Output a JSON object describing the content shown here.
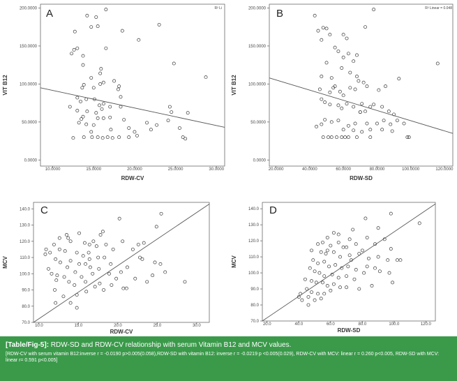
{
  "chart_data": [
    {
      "panel_letter": "A",
      "type": "scatter",
      "xlabel": "RDW-CV",
      "ylabel": "VIT B12",
      "xlim": [
        8.5,
        31
      ],
      "ylim": [
        -8,
        205
      ],
      "xticks": [
        10,
        15,
        20,
        25,
        30
      ],
      "yticks": [
        0,
        50,
        100,
        150,
        200
      ],
      "xtick_labels": [
        "10.0000",
        "15.0000",
        "20.0000",
        "25.0000",
        "30.0000"
      ],
      "ytick_labels": [
        "0.0000",
        "50.0000",
        "100.0000",
        "150.0000",
        "200.0000"
      ],
      "corner_note": "R² Li",
      "fit_line": {
        "x": [
          8.5,
          31
        ],
        "y": [
          95,
          43
        ]
      },
      "points": [
        [
          16.5,
          198
        ],
        [
          14.2,
          190
        ],
        [
          15.3,
          188
        ],
        [
          12.7,
          169
        ],
        [
          13.0,
          147
        ],
        [
          12.6,
          145
        ],
        [
          12.3,
          140
        ],
        [
          14.7,
          175
        ],
        [
          15.5,
          176
        ],
        [
          18.5,
          170
        ],
        [
          23.0,
          178
        ],
        [
          20.5,
          158
        ],
        [
          16.5,
          147
        ],
        [
          13.7,
          137
        ],
        [
          13.7,
          125
        ],
        [
          15.9,
          120
        ],
        [
          15.8,
          114
        ],
        [
          14.7,
          108
        ],
        [
          17.5,
          104
        ],
        [
          15.8,
          100
        ],
        [
          16.2,
          102
        ],
        [
          13.8,
          99
        ],
        [
          15.0,
          95
        ],
        [
          18.0,
          93
        ],
        [
          18.1,
          97
        ],
        [
          13.6,
          95
        ],
        [
          13.0,
          82
        ],
        [
          13.4,
          77
        ],
        [
          12.1,
          70
        ],
        [
          14.1,
          80
        ],
        [
          15.1,
          80
        ],
        [
          15.7,
          72
        ],
        [
          16.2,
          74
        ],
        [
          17.0,
          70
        ],
        [
          18.3,
          70
        ],
        [
          13.0,
          65
        ],
        [
          14.2,
          64
        ],
        [
          13.5,
          54
        ],
        [
          15.5,
          55
        ],
        [
          16.2,
          55
        ],
        [
          17.0,
          56
        ],
        [
          18.7,
          53
        ],
        [
          21.5,
          49
        ],
        [
          22.7,
          46
        ],
        [
          13.2,
          49
        ],
        [
          14.1,
          47
        ],
        [
          15.0,
          46
        ],
        [
          14.7,
          37
        ],
        [
          17.1,
          40
        ],
        [
          19.3,
          42
        ],
        [
          20.0,
          37
        ],
        [
          22.0,
          40
        ],
        [
          12.5,
          29
        ],
        [
          13.8,
          30
        ],
        [
          14.8,
          30
        ],
        [
          15.5,
          30
        ],
        [
          16.1,
          29
        ],
        [
          16.7,
          30
        ],
        [
          17.3,
          29
        ],
        [
          18.1,
          30
        ],
        [
          19.3,
          30
        ],
        [
          20.3,
          32
        ],
        [
          24.1,
          52
        ],
        [
          24.8,
          127
        ],
        [
          24.3,
          70
        ],
        [
          24.5,
          63
        ],
        [
          25.5,
          42
        ],
        [
          26.5,
          62
        ],
        [
          25.9,
          30
        ],
        [
          26.2,
          28
        ],
        [
          28.7,
          109
        ],
        [
          13.7,
          57
        ],
        [
          15.3,
          62
        ],
        [
          16.0,
          67
        ],
        [
          18.3,
          83
        ]
      ]
    },
    {
      "panel_letter": "B",
      "type": "scatter",
      "xlabel": "RDW-SD",
      "ylabel": "VIT B12",
      "xlim": [
        16,
        125
      ],
      "ylim": [
        -8,
        205
      ],
      "xticks": [
        20,
        40,
        60,
        80,
        100,
        120
      ],
      "yticks": [
        0,
        50,
        100,
        150,
        200
      ],
      "xtick_labels": [
        "20.0000",
        "40.0000",
        "60.0000",
        "80.0000",
        "100.0000",
        "120.0000"
      ],
      "ytick_labels": [
        "0.0000",
        "50.0000",
        "100.0000",
        "150.0000",
        "200.0000"
      ],
      "corner_note": "R² Linear = 0.048",
      "fit_line": {
        "x": [
          16,
          125
        ],
        "y": [
          108,
          35
        ]
      },
      "points": [
        [
          78,
          198
        ],
        [
          43,
          190
        ],
        [
          73,
          175
        ],
        [
          48,
          174
        ],
        [
          50,
          173
        ],
        [
          52,
          165
        ],
        [
          60,
          165
        ],
        [
          47,
          158
        ],
        [
          62,
          160
        ],
        [
          55,
          148
        ],
        [
          57,
          143
        ],
        [
          63,
          140
        ],
        [
          68,
          138
        ],
        [
          60,
          135
        ],
        [
          66,
          130
        ],
        [
          50,
          128
        ],
        [
          59,
          121
        ],
        [
          64,
          115
        ],
        [
          53,
          108
        ],
        [
          47,
          110
        ],
        [
          68,
          110
        ],
        [
          85,
          97
        ],
        [
          81,
          92
        ],
        [
          93,
          107
        ],
        [
          69,
          104
        ],
        [
          72,
          102
        ],
        [
          74,
          97
        ],
        [
          67,
          93
        ],
        [
          58,
          90
        ],
        [
          60,
          85
        ],
        [
          46,
          93
        ],
        [
          52,
          89
        ],
        [
          55,
          97
        ],
        [
          47,
          80
        ],
        [
          49,
          76
        ],
        [
          52,
          73
        ],
        [
          57,
          72
        ],
        [
          59,
          68
        ],
        [
          62,
          74
        ],
        [
          66,
          70
        ],
        [
          71,
          74
        ],
        [
          76,
          70
        ],
        [
          70,
          63
        ],
        [
          73,
          64
        ],
        [
          78,
          73
        ],
        [
          83,
          70
        ],
        [
          87,
          64
        ],
        [
          90,
          60
        ],
        [
          84,
          52
        ],
        [
          92,
          52
        ],
        [
          96,
          48
        ],
        [
          88,
          47
        ],
        [
          80,
          48
        ],
        [
          74,
          48
        ],
        [
          67,
          48
        ],
        [
          63,
          45
        ],
        [
          57,
          52
        ],
        [
          53,
          50
        ],
        [
          49,
          53
        ],
        [
          47,
          47
        ],
        [
          44,
          44
        ],
        [
          60,
          40
        ],
        [
          66,
          39
        ],
        [
          71,
          37
        ],
        [
          76,
          40
        ],
        [
          83,
          40
        ],
        [
          89,
          38
        ],
        [
          48,
          30
        ],
        [
          51,
          30
        ],
        [
          53,
          30
        ],
        [
          56,
          30
        ],
        [
          59,
          30
        ],
        [
          61,
          30
        ],
        [
          63,
          30
        ],
        [
          68,
          30
        ],
        [
          76,
          30
        ],
        [
          98,
          30
        ],
        [
          99,
          30
        ],
        [
          116,
          127
        ],
        [
          45,
          170
        ],
        [
          64,
          95
        ],
        [
          54,
          95
        ],
        [
          70,
          63
        ]
      ]
    },
    {
      "panel_letter": "C",
      "type": "scatter",
      "xlabel": "RDW-CV",
      "ylabel": "MCV",
      "xlim": [
        9.3,
        31.6
      ],
      "ylim": [
        70,
        144
      ],
      "xticks": [
        10,
        15,
        20,
        25,
        30
      ],
      "yticks": [
        70,
        80,
        90,
        100,
        110,
        120,
        130,
        140
      ],
      "xtick_labels": [
        "10.0",
        "15.0",
        "20.0",
        "25.0",
        "30.0"
      ],
      "ytick_labels": [
        "70.0",
        "80.0",
        "90.0",
        "100.0",
        "110.0",
        "120.0",
        "130.0",
        "140.0"
      ],
      "corner_note": "",
      "fit_line": {
        "x": [
          9.3,
          31.6
        ],
        "y": [
          70,
          143
        ]
      },
      "points": [
        [
          20.2,
          134
        ],
        [
          25.5,
          137
        ],
        [
          24.9,
          129
        ],
        [
          18.1,
          126
        ],
        [
          15.1,
          125
        ],
        [
          13.5,
          124
        ],
        [
          12.6,
          122
        ],
        [
          13.7,
          122
        ],
        [
          14.0,
          120
        ],
        [
          15.8,
          119
        ],
        [
          16.4,
          118
        ],
        [
          16.9,
          120
        ],
        [
          17.3,
          117
        ],
        [
          18.5,
          118
        ],
        [
          17.8,
          124
        ],
        [
          20.6,
          120
        ],
        [
          23.3,
          119
        ],
        [
          10.9,
          115
        ],
        [
          11.4,
          113
        ],
        [
          12.6,
          115
        ],
        [
          13.3,
          114
        ],
        [
          14.8,
          113
        ],
        [
          15.6,
          111
        ],
        [
          16.3,
          113
        ],
        [
          17.5,
          110
        ],
        [
          18.3,
          110
        ],
        [
          19.4,
          115
        ],
        [
          21.9,
          115
        ],
        [
          12.1,
          109
        ],
        [
          12.7,
          107
        ],
        [
          14.0,
          108
        ],
        [
          15.1,
          106
        ],
        [
          15.9,
          106
        ],
        [
          16.5,
          104
        ],
        [
          17.6,
          103
        ],
        [
          19.1,
          106
        ],
        [
          21.2,
          104
        ],
        [
          22.8,
          110
        ],
        [
          23.1,
          109
        ],
        [
          24.7,
          107
        ],
        [
          25.4,
          106
        ],
        [
          26.0,
          101
        ],
        [
          11.2,
          103
        ],
        [
          11.6,
          100
        ],
        [
          12.3,
          99
        ],
        [
          13.2,
          98
        ],
        [
          14.6,
          101
        ],
        [
          15.4,
          98
        ],
        [
          16.8,
          100
        ],
        [
          18.9,
          100
        ],
        [
          20.4,
          101
        ],
        [
          22.2,
          97
        ],
        [
          23.7,
          95
        ],
        [
          12.2,
          96
        ],
        [
          13.8,
          95
        ],
        [
          14.5,
          93
        ],
        [
          15.9,
          95
        ],
        [
          17.7,
          94
        ],
        [
          19.2,
          93
        ],
        [
          20.7,
          91
        ],
        [
          21.1,
          91
        ],
        [
          12.0,
          90
        ],
        [
          13.1,
          86
        ],
        [
          14.8,
          87
        ],
        [
          16.0,
          89
        ],
        [
          17.1,
          92
        ],
        [
          18.2,
          90
        ],
        [
          12.1,
          82
        ],
        [
          14.0,
          82
        ],
        [
          14.8,
          79
        ],
        [
          28.5,
          95
        ],
        [
          10.8,
          112
        ],
        [
          11.9,
          118
        ],
        [
          13.6,
          104
        ],
        [
          16.4,
          109
        ],
        [
          19.8,
          97
        ],
        [
          22.6,
          118
        ],
        [
          24.4,
          99
        ]
      ]
    },
    {
      "panel_letter": "D",
      "type": "scatter",
      "xlabel": "RDW-SD",
      "ylabel": "MCV",
      "xlim": [
        17,
        126
      ],
      "ylim": [
        70,
        144
      ],
      "xticks": [
        20,
        40,
        60,
        80,
        100,
        120
      ],
      "yticks": [
        70,
        80,
        90,
        100,
        110,
        120,
        130,
        140
      ],
      "xtick_labels": [
        "20.0",
        "40.0",
        "60.0",
        "80.0",
        "100.0",
        "120.0"
      ],
      "ytick_labels": [
        "70.0",
        "80.0",
        "90.0",
        "100.0",
        "110.0",
        "120.0",
        "130.0",
        "140.0"
      ],
      "corner_note": "",
      "fit_line": {
        "x": [
          17,
          126
        ],
        "y": [
          70,
          143
        ]
      },
      "points": [
        [
          98,
          137
        ],
        [
          116,
          131
        ],
        [
          82,
          134
        ],
        [
          74,
          127
        ],
        [
          90,
          128
        ],
        [
          62,
          125
        ],
        [
          58,
          122
        ],
        [
          65,
          124
        ],
        [
          72,
          121
        ],
        [
          83,
          122
        ],
        [
          94,
          121
        ],
        [
          52,
          118
        ],
        [
          55,
          119
        ],
        [
          60,
          117
        ],
        [
          65,
          119
        ],
        [
          70,
          116
        ],
        [
          76,
          118
        ],
        [
          88,
          118
        ],
        [
          98,
          115
        ],
        [
          48,
          114
        ],
        [
          54,
          113
        ],
        [
          57,
          112
        ],
        [
          62,
          113
        ],
        [
          66,
          110
        ],
        [
          72,
          111
        ],
        [
          78,
          112
        ],
        [
          84,
          109
        ],
        [
          90,
          110
        ],
        [
          96,
          108
        ],
        [
          104,
          108
        ],
        [
          49,
          108
        ],
        [
          52,
          106
        ],
        [
          56,
          107
        ],
        [
          59,
          104
        ],
        [
          63,
          105
        ],
        [
          67,
          103
        ],
        [
          71,
          104
        ],
        [
          76,
          102
        ],
        [
          83,
          104
        ],
        [
          88,
          103
        ],
        [
          47,
          103
        ],
        [
          50,
          101
        ],
        [
          53,
          100
        ],
        [
          56,
          98
        ],
        [
          61,
          99
        ],
        [
          65,
          97
        ],
        [
          70,
          98
        ],
        [
          75,
          96
        ],
        [
          81,
          100
        ],
        [
          91,
          101
        ],
        [
          97,
          100
        ],
        [
          102,
          108
        ],
        [
          44,
          96
        ],
        [
          48,
          95
        ],
        [
          51,
          94
        ],
        [
          55,
          94
        ],
        [
          58,
          92
        ],
        [
          62,
          93
        ],
        [
          66,
          91
        ],
        [
          70,
          91
        ],
        [
          78,
          90
        ],
        [
          45,
          90
        ],
        [
          48,
          88
        ],
        [
          52,
          87
        ],
        [
          56,
          87
        ],
        [
          60,
          89
        ],
        [
          41,
          87
        ],
        [
          46,
          85
        ],
        [
          50,
          83
        ],
        [
          54,
          84
        ],
        [
          42,
          83
        ],
        [
          46,
          80
        ],
        [
          40,
          85
        ],
        [
          73,
          108
        ],
        [
          99,
          94
        ],
        [
          58,
          114
        ],
        [
          68,
          116
        ],
        [
          80,
          114
        ],
        [
          86,
          92
        ]
      ]
    }
  ],
  "caption": {
    "label": "[Table/Fig-5]:",
    "title": " RDW-SD and RDW-CV relationship with serum Vitamin B12 and MCV values.",
    "note": "[RDW-CV with serum vitamin B12:inverse  r = -0.0190 p>0.005(0.058),RDW-SD with vitamin B12: inverse  r = -0.0219 p <0.005(0.029), RDW-CV with MCV: linear  r = 0.260 p<0.005, RDW-SD with MCV: linear  r= 0.591 p<0.005]"
  }
}
